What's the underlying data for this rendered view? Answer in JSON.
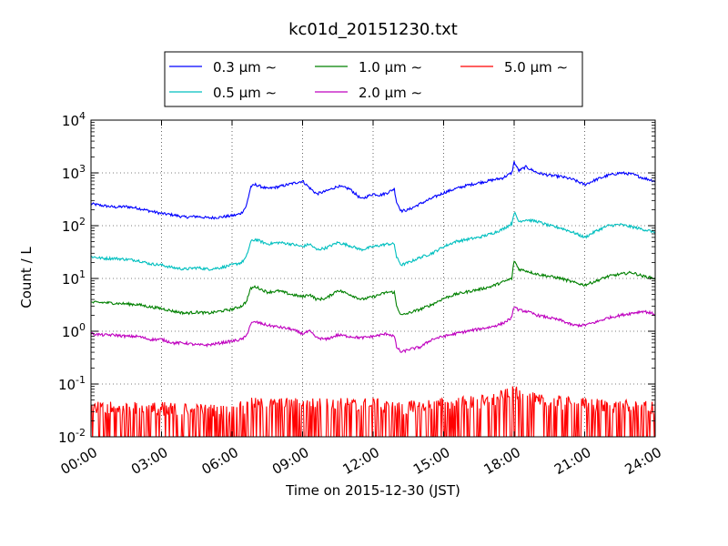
{
  "chart_data": {
    "type": "line",
    "title": "kc01d_20151230.txt",
    "xlabel": "Time on 2015-12-30 (JST)",
    "ylabel": "Count / L",
    "xlim": [
      "00:00",
      "24:00"
    ],
    "ylim": [
      0.01,
      10000
    ],
    "yscale": "log",
    "grid": true,
    "legend_position": "top",
    "x_ticks": [
      "00:00",
      "03:00",
      "06:00",
      "09:00",
      "12:00",
      "15:00",
      "18:00",
      "21:00",
      "24:00"
    ],
    "y_ticks": [
      {
        "base": "10",
        "exp": "-2"
      },
      {
        "base": "10",
        "exp": "-1"
      },
      {
        "base": "10",
        "exp": "0"
      },
      {
        "base": "10",
        "exp": "1"
      },
      {
        "base": "10",
        "exp": "2"
      },
      {
        "base": "10",
        "exp": "3"
      },
      {
        "base": "10",
        "exp": "4"
      }
    ],
    "series": [
      {
        "name": "0.3 μm ∼",
        "color": "#0000ff",
        "x_hours": [
          0,
          0.5,
          1,
          1.5,
          2,
          2.5,
          3,
          3.5,
          4,
          4.5,
          5,
          5.5,
          6,
          6.2,
          6.4,
          6.6,
          6.8,
          7,
          7.5,
          8,
          8.5,
          9,
          9.3,
          9.6,
          10,
          10.5,
          11,
          11.5,
          12,
          12.3,
          12.6,
          12.9,
          13,
          13.2,
          13.5,
          14,
          14.5,
          15,
          15.5,
          16,
          16.5,
          17,
          17.5,
          17.9,
          18,
          18.2,
          18.5,
          19,
          19.5,
          20,
          20.5,
          21,
          21.5,
          22,
          22.5,
          23,
          23.5,
          24
        ],
        "y": [
          260,
          240,
          225,
          230,
          215,
          190,
          170,
          160,
          145,
          150,
          140,
          145,
          155,
          160,
          175,
          230,
          550,
          600,
          500,
          550,
          620,
          700,
          520,
          400,
          450,
          560,
          500,
          320,
          400,
          380,
          420,
          500,
          280,
          190,
          200,
          260,
          330,
          420,
          500,
          580,
          650,
          720,
          800,
          1000,
          1600,
          1100,
          1300,
          1000,
          900,
          850,
          750,
          600,
          750,
          900,
          1000,
          950,
          800,
          700
        ]
      },
      {
        "name": "0.5 μm ∼",
        "color": "#00bfbf",
        "x_hours": [
          0,
          0.5,
          1,
          1.5,
          2,
          2.5,
          3,
          3.5,
          4,
          4.5,
          5,
          5.5,
          6,
          6.4,
          6.6,
          6.8,
          7,
          7.5,
          8,
          8.5,
          9,
          9.3,
          9.6,
          10,
          10.5,
          11,
          11.5,
          12,
          12.6,
          12.9,
          13,
          13.2,
          13.5,
          14,
          14.5,
          15,
          15.5,
          16,
          16.5,
          17,
          17.5,
          17.9,
          18,
          18.2,
          18.5,
          19,
          19.5,
          20,
          20.5,
          21,
          21.5,
          22,
          22.5,
          23,
          23.5,
          24
        ],
        "y": [
          26,
          24,
          24,
          23,
          22,
          19,
          18,
          16,
          15,
          16,
          15,
          16,
          18,
          20,
          25,
          50,
          55,
          45,
          48,
          45,
          40,
          45,
          35,
          38,
          48,
          42,
          35,
          40,
          45,
          45,
          25,
          18,
          20,
          25,
          30,
          40,
          50,
          55,
          60,
          70,
          85,
          110,
          180,
          120,
          130,
          120,
          100,
          90,
          75,
          60,
          80,
          100,
          105,
          95,
          85,
          75
        ]
      },
      {
        "name": "1.0 μm ∼",
        "color": "#008000",
        "x_hours": [
          0,
          0.5,
          1,
          1.5,
          2,
          2.5,
          3,
          3.5,
          4,
          4.5,
          5,
          5.5,
          6,
          6.4,
          6.6,
          6.8,
          7,
          7.5,
          8,
          8.5,
          9,
          9.3,
          9.6,
          10,
          10.5,
          11,
          11.5,
          12,
          12.6,
          12.9,
          13,
          13.2,
          13.5,
          14,
          14.5,
          15,
          15.5,
          16,
          16.5,
          17,
          17.5,
          17.9,
          18,
          18.2,
          18.5,
          19,
          19.5,
          20,
          20.5,
          21,
          21.5,
          22,
          22.5,
          23,
          23.5,
          24
        ],
        "y": [
          3.5,
          3.5,
          3.4,
          3.3,
          3.2,
          2.9,
          2.7,
          2.4,
          2.2,
          2.3,
          2.2,
          2.4,
          2.6,
          3.0,
          3.6,
          6.5,
          7.0,
          5.5,
          5.8,
          5.0,
          4.5,
          5.0,
          4.0,
          4.2,
          6.0,
          5.0,
          4.0,
          4.5,
          5.5,
          5.5,
          3.0,
          2.0,
          2.2,
          2.6,
          3.2,
          4.2,
          5.0,
          5.6,
          6.2,
          7.0,
          8.5,
          10,
          22,
          15,
          14,
          12,
          11,
          10,
          8.5,
          7.5,
          9,
          11,
          12,
          13,
          11,
          10
        ]
      },
      {
        "name": "2.0 μm ∼",
        "color": "#bf00bf",
        "x_hours": [
          0,
          0.5,
          1,
          1.5,
          2,
          2.5,
          3,
          3.5,
          4,
          4.5,
          5,
          5.5,
          6,
          6.4,
          6.6,
          6.8,
          7,
          7.5,
          8,
          8.5,
          9,
          9.3,
          9.6,
          10,
          10.5,
          11,
          11.5,
          12,
          12.6,
          12.9,
          13,
          13.2,
          13.5,
          14,
          14.5,
          15,
          15.5,
          16,
          16.5,
          17,
          17.5,
          17.9,
          18,
          18.2,
          18.5,
          19,
          19.5,
          20,
          20.5,
          21,
          21.5,
          22,
          22.5,
          23,
          23.5,
          24
        ],
        "y": [
          0.9,
          0.85,
          0.85,
          0.8,
          0.8,
          0.7,
          0.7,
          0.6,
          0.6,
          0.55,
          0.55,
          0.6,
          0.65,
          0.7,
          0.8,
          1.4,
          1.5,
          1.3,
          1.2,
          1.1,
          0.9,
          1.0,
          0.75,
          0.7,
          0.85,
          0.8,
          0.75,
          0.8,
          0.9,
          0.8,
          0.5,
          0.4,
          0.45,
          0.5,
          0.7,
          0.8,
          0.9,
          1.0,
          1.1,
          1.2,
          1.4,
          1.8,
          3.0,
          2.5,
          2.4,
          2.0,
          1.8,
          1.6,
          1.3,
          1.3,
          1.5,
          1.8,
          2.0,
          2.2,
          2.4,
          2.1
        ]
      },
      {
        "name": "5.0 μm ∼",
        "color": "#ff0000",
        "noisy": true,
        "x_hours": [
          0,
          3,
          6,
          6.8,
          9,
          12,
          13,
          15,
          17,
          18,
          19,
          21,
          24
        ],
        "y": [
          0.025,
          0.025,
          0.022,
          0.03,
          0.03,
          0.03,
          0.025,
          0.03,
          0.035,
          0.05,
          0.035,
          0.03,
          0.025
        ]
      }
    ]
  }
}
